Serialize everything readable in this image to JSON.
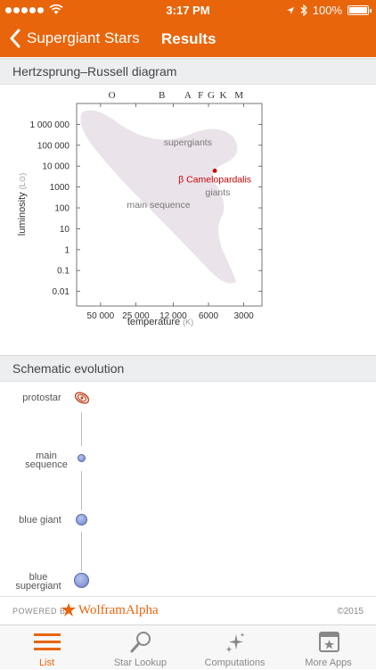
{
  "status_bar": {
    "time": "3:17 PM",
    "battery": "100%",
    "signal_dots": 5
  },
  "nav": {
    "back_label": "Supergiant Stars",
    "title": "Results"
  },
  "hr_section": {
    "title": "Hertzsprung–Russell diagram"
  },
  "chart_data": {
    "type": "scatter",
    "title": "",
    "xlabel": "temperature",
    "xlabel_unit": "(K)",
    "ylabel": "luminosity",
    "ylabel_unit": "(L⊙)",
    "x_scale": "log",
    "x_reversed": true,
    "y_scale": "log",
    "x_ticks": [
      50000,
      25000,
      12000,
      6000,
      3000
    ],
    "x_tick_labels": [
      "50 000",
      "25 000",
      "12 000",
      "6000",
      "3000"
    ],
    "y_ticks": [
      1000000,
      100000,
      10000,
      1000,
      100,
      10,
      1,
      0.1,
      0.01
    ],
    "y_tick_labels": [
      "1 000 000",
      "100 000",
      "10 000",
      "1000",
      "100",
      "10",
      "1",
      "0.1",
      "0.01"
    ],
    "spectral_classes": [
      {
        "label": "O",
        "temperature": 40000
      },
      {
        "label": "B",
        "temperature": 15000
      },
      {
        "label": "A",
        "temperature": 9000
      },
      {
        "label": "F",
        "temperature": 7000
      },
      {
        "label": "G",
        "temperature": 5700
      },
      {
        "label": "K",
        "temperature": 4500
      },
      {
        "label": "M",
        "temperature": 3300
      }
    ],
    "regions": [
      {
        "label": "supergiants",
        "temperature": 9000,
        "luminosity": 100000
      },
      {
        "label": "main sequence",
        "temperature": 16000,
        "luminosity": 100
      },
      {
        "label": "giants",
        "temperature": 5000,
        "luminosity": 400
      }
    ],
    "points": [
      {
        "label": "β Camelopardalis",
        "temperature": 5300,
        "luminosity": 6000,
        "color": "#cc0000"
      }
    ],
    "xlim": [
      80000,
      2100
    ],
    "ylim": [
      0.002,
      10000000
    ]
  },
  "evolution": {
    "title": "Schematic evolution",
    "stages": [
      {
        "label": "protostar",
        "icon": "protostar-icon"
      },
      {
        "label": "main\nsequence",
        "icon": "star-dot-small"
      },
      {
        "label": "blue giant",
        "icon": "star-dot-medium"
      },
      {
        "label": "blue\nsupergiant",
        "icon": "star-dot-large"
      }
    ]
  },
  "footer": {
    "powered_by": "POWERED BY",
    "brand": "WolframAlpha",
    "copyright": "©2015"
  },
  "tabs": [
    {
      "label": "List",
      "icon": "list-icon",
      "active": true
    },
    {
      "label": "Star Lookup",
      "icon": "magnifier-icon",
      "active": false
    },
    {
      "label": "Computations",
      "icon": "sparkles-icon",
      "active": false
    },
    {
      "label": "More Apps",
      "icon": "app-window-icon",
      "active": false
    }
  ],
  "colors": {
    "accent": "#e8650b",
    "region_fill": "#ebe3ea",
    "highlight_star": "#cc0000"
  }
}
